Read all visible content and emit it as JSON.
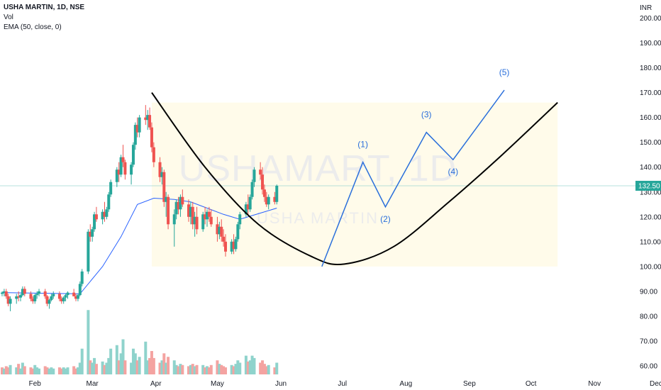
{
  "legend": {
    "title": "USHA MARTIN, 1D, NSE",
    "vol": "Vol",
    "ema": "EMA (50, close, 0)"
  },
  "watermark": {
    "main": "USHAMART, 1D",
    "sub": "USHA MARTIN"
  },
  "chart_data": {
    "type": "candlestick",
    "currency": "INR",
    "last_price_label": "132.50",
    "last_price": 132.5,
    "ylim": [
      56,
      205
    ],
    "y_ticks": [
      60,
      70,
      80,
      90,
      100,
      110,
      120,
      130,
      140,
      150,
      160,
      170,
      180,
      190,
      200
    ],
    "y_tick_labels": [
      "60.00",
      "70.00",
      "80.00",
      "90.00",
      "100.00",
      "110.00",
      "120.00",
      "130.00",
      "140.00",
      "150.00",
      "160.00",
      "170.00",
      "180.00",
      "190.00",
      "200.00"
    ],
    "x_ticks": [
      "Feb",
      "Mar",
      "Apr",
      "May",
      "Jun",
      "Jul",
      "Aug",
      "Sep",
      "Oct",
      "Nov",
      "Dec"
    ],
    "start_date": "2023-01-16",
    "candles": [
      [
        89,
        90,
        88,
        89.5
      ],
      [
        89.5,
        91,
        88,
        90
      ],
      [
        90,
        91,
        87,
        88
      ],
      [
        88,
        89,
        84,
        85
      ],
      [
        85,
        88,
        82,
        87
      ],
      [
        87,
        89,
        85,
        88
      ],
      [
        88,
        90,
        86,
        87.5
      ],
      [
        87.5,
        89,
        86,
        88.5
      ],
      [
        88.5,
        92,
        88,
        91
      ],
      [
        91,
        92,
        88,
        89
      ],
      [
        89,
        90,
        86,
        87
      ],
      [
        87,
        88,
        85,
        86
      ],
      [
        86,
        89,
        85,
        88.5
      ],
      [
        88.5,
        90,
        87,
        89
      ],
      [
        89,
        91,
        88,
        90
      ],
      [
        90,
        91,
        87,
        88
      ],
      [
        88,
        88.5,
        84,
        85
      ],
      [
        85,
        87,
        83,
        86.5
      ],
      [
        86.5,
        89,
        86,
        88
      ],
      [
        88,
        90,
        87,
        89
      ],
      [
        89,
        90,
        86,
        87
      ],
      [
        87,
        88,
        85,
        86
      ],
      [
        86,
        88,
        85,
        87.5
      ],
      [
        87.5,
        89,
        86,
        88.5
      ],
      [
        88.5,
        90,
        87,
        89.5
      ],
      [
        89.5,
        91,
        88,
        88
      ],
      [
        88,
        89,
        86,
        87
      ],
      [
        87,
        89,
        86,
        88.5
      ],
      [
        88.5,
        94,
        88,
        93
      ],
      [
        93,
        99,
        92,
        98
      ],
      [
        98,
        115,
        97,
        114
      ],
      [
        114,
        117,
        110,
        112
      ],
      [
        112,
        116,
        110,
        115
      ],
      [
        115,
        122,
        114,
        121
      ],
      [
        121,
        124,
        118,
        119
      ],
      [
        119,
        123,
        117,
        122
      ],
      [
        122,
        126,
        118,
        120
      ],
      [
        120,
        124,
        119,
        123
      ],
      [
        123,
        130,
        122,
        129
      ],
      [
        129,
        135,
        128,
        134
      ],
      [
        134,
        140,
        132,
        139
      ],
      [
        139,
        142,
        134,
        137
      ],
      [
        137,
        145,
        136,
        144
      ],
      [
        144,
        149,
        140,
        142
      ],
      [
        142,
        143,
        135,
        137
      ],
      [
        137,
        142,
        133,
        141
      ],
      [
        141,
        150,
        140,
        149
      ],
      [
        149,
        158,
        147,
        157
      ],
      [
        157,
        160,
        152,
        154
      ],
      [
        154,
        161,
        152,
        160
      ],
      [
        160,
        165,
        157,
        159
      ],
      [
        159,
        163,
        155,
        161
      ],
      [
        161,
        164,
        155,
        156
      ],
      [
        156,
        158,
        146,
        148
      ],
      [
        148,
        150,
        140,
        142
      ],
      [
        142,
        144,
        134,
        136
      ],
      [
        136,
        140,
        133,
        138
      ],
      [
        138,
        139,
        124,
        126
      ],
      [
        126,
        130,
        120,
        128
      ],
      [
        128,
        129,
        115,
        117
      ],
      [
        117,
        123,
        108,
        121
      ],
      [
        121,
        127,
        119,
        126
      ],
      [
        126,
        128,
        121,
        123
      ],
      [
        123,
        129,
        120,
        128
      ],
      [
        128,
        131,
        124,
        125
      ],
      [
        125,
        127,
        118,
        120
      ],
      [
        120,
        126,
        117,
        124
      ],
      [
        124,
        126,
        115,
        117
      ],
      [
        117,
        122,
        112,
        120
      ],
      [
        120,
        124,
        113,
        115
      ],
      [
        115,
        122,
        114,
        121
      ],
      [
        121,
        124,
        117,
        119
      ],
      [
        119,
        123,
        116,
        122
      ],
      [
        122,
        124,
        118,
        120
      ],
      [
        120,
        123,
        116,
        117
      ],
      [
        117,
        120,
        110,
        113
      ],
      [
        113,
        118,
        111,
        116
      ],
      [
        116,
        119,
        110,
        112
      ],
      [
        112,
        115,
        108,
        110
      ],
      [
        110,
        113,
        104,
        106
      ],
      [
        106,
        111,
        105,
        110
      ],
      [
        110,
        113,
        105,
        107
      ],
      [
        107,
        112,
        106,
        111
      ],
      [
        111,
        118,
        110,
        117
      ],
      [
        117,
        122,
        115,
        121
      ],
      [
        121,
        126,
        120,
        125
      ],
      [
        125,
        129,
        121,
        123
      ],
      [
        123,
        129,
        122,
        128
      ],
      [
        128,
        135,
        127,
        134
      ],
      [
        134,
        140,
        132,
        139
      ],
      [
        139,
        142,
        135,
        137
      ],
      [
        137,
        140,
        129,
        131
      ],
      [
        131,
        133,
        126,
        128
      ],
      [
        128,
        130,
        124,
        125
      ],
      [
        125,
        129,
        123,
        128
      ],
      [
        128,
        130,
        125,
        126
      ],
      [
        126,
        133,
        125,
        132.5
      ]
    ],
    "ema50": [
      [
        0,
        89.5
      ],
      [
        28,
        89
      ],
      [
        35,
        100
      ],
      [
        42,
        112
      ],
      [
        48,
        125
      ],
      [
        54,
        127.5
      ],
      [
        60,
        127
      ],
      [
        66,
        126
      ],
      [
        72,
        123.5
      ],
      [
        78,
        121
      ],
      [
        84,
        119
      ],
      [
        88,
        120.5
      ],
      [
        92,
        122
      ],
      [
        96,
        123.5
      ]
    ],
    "volume": [
      [
        6,
        0
      ],
      [
        5,
        1
      ],
      [
        7,
        0
      ],
      [
        6,
        0
      ],
      [
        8,
        1
      ],
      [
        6,
        1
      ],
      [
        9,
        0
      ],
      [
        5,
        1
      ],
      [
        10,
        1
      ],
      [
        7,
        0
      ],
      [
        6,
        0
      ],
      [
        5,
        0
      ],
      [
        8,
        1
      ],
      [
        6,
        1
      ],
      [
        5,
        1
      ],
      [
        7,
        0
      ],
      [
        6,
        0
      ],
      [
        5,
        1
      ],
      [
        6,
        1
      ],
      [
        5,
        1
      ],
      [
        6,
        0
      ],
      [
        5,
        0
      ],
      [
        6,
        1
      ],
      [
        5,
        1
      ],
      [
        6,
        1
      ],
      [
        7,
        0
      ],
      [
        5,
        0
      ],
      [
        6,
        1
      ],
      [
        10,
        1
      ],
      [
        22,
        1
      ],
      [
        55,
        1
      ],
      [
        12,
        0
      ],
      [
        10,
        1
      ],
      [
        14,
        1
      ],
      [
        9,
        0
      ],
      [
        11,
        1
      ],
      [
        8,
        0
      ],
      [
        10,
        1
      ],
      [
        14,
        1
      ],
      [
        22,
        1
      ],
      [
        25,
        1
      ],
      [
        12,
        0
      ],
      [
        18,
        1
      ],
      [
        30,
        1
      ],
      [
        12,
        0
      ],
      [
        10,
        1
      ],
      [
        22,
        1
      ],
      [
        18,
        1
      ],
      [
        12,
        0
      ],
      [
        15,
        1
      ],
      [
        28,
        1
      ],
      [
        12,
        1
      ],
      [
        14,
        0
      ],
      [
        20,
        0
      ],
      [
        14,
        0
      ],
      [
        10,
        0
      ],
      [
        12,
        1
      ],
      [
        18,
        0
      ],
      [
        10,
        1
      ],
      [
        15,
        0
      ],
      [
        12,
        1
      ],
      [
        8,
        1
      ],
      [
        7,
        0
      ],
      [
        9,
        1
      ],
      [
        8,
        0
      ],
      [
        7,
        0
      ],
      [
        8,
        1
      ],
      [
        9,
        0
      ],
      [
        7,
        1
      ],
      [
        8,
        0
      ],
      [
        8,
        1
      ],
      [
        6,
        0
      ],
      [
        7,
        1
      ],
      [
        6,
        0
      ],
      [
        8,
        0
      ],
      [
        12,
        0
      ],
      [
        9,
        1
      ],
      [
        8,
        0
      ],
      [
        7,
        0
      ],
      [
        6,
        0
      ],
      [
        8,
        1
      ],
      [
        7,
        0
      ],
      [
        9,
        1
      ],
      [
        12,
        1
      ],
      [
        10,
        1
      ],
      [
        16,
        1
      ],
      [
        11,
        0
      ],
      [
        12,
        1
      ],
      [
        16,
        1
      ],
      [
        14,
        1
      ],
      [
        10,
        0
      ],
      [
        12,
        0
      ],
      [
        9,
        0
      ],
      [
        7,
        0
      ],
      [
        8,
        1
      ],
      [
        6,
        0
      ],
      [
        10,
        1
      ]
    ],
    "cup_curve": [
      [
        "2023-03-30",
        170
      ],
      [
        "2023-04-25",
        140
      ],
      [
        "2023-05-21",
        117
      ],
      [
        "2023-06-16",
        104
      ],
      [
        "2023-07-02",
        101
      ],
      [
        "2023-07-26",
        108
      ],
      [
        "2023-08-22",
        126
      ],
      [
        "2023-09-17",
        145
      ],
      [
        "2023-10-14",
        166
      ]
    ],
    "shaded_zone": {
      "from": "2023-03-30",
      "to": "2023-10-14",
      "top": 166
    },
    "elliott_waves": {
      "points": [
        [
          "2023-06-21",
          100
        ],
        [
          "2023-07-11",
          142
        ],
        [
          "2023-07-22",
          124
        ],
        [
          "2023-08-11",
          154
        ],
        [
          "2023-08-24",
          143
        ],
        [
          "2023-09-18",
          171
        ]
      ],
      "labels": [
        {
          "text": "(1)",
          "date": "2023-07-11",
          "price": 148
        },
        {
          "text": "(2)",
          "date": "2023-07-22",
          "price": 118
        },
        {
          "text": "(3)",
          "date": "2023-08-11",
          "price": 160
        },
        {
          "text": "(4)",
          "date": "2023-08-24",
          "price": 137
        },
        {
          "text": "(5)",
          "date": "2023-09-18",
          "price": 177
        }
      ]
    }
  },
  "colors": {
    "up": "#26a69a",
    "down": "#ef5350",
    "vol_up": "#8fd3cc",
    "vol_down": "#f4a3a1",
    "ema": "#2962ff",
    "wave": "#2a6fdb",
    "cup": "#000000",
    "zone": "#fffbea",
    "price_line": "#9fd8d2",
    "price_badge": "#26a69a",
    "grid": "#ffffff"
  }
}
